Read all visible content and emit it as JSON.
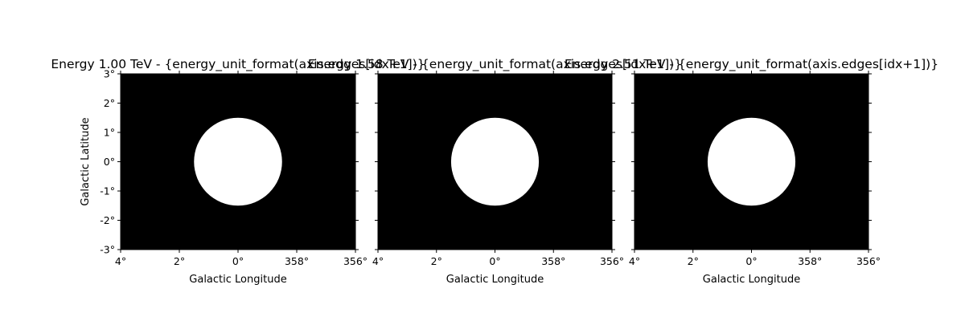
{
  "chart_data": [
    {
      "type": "heatmap",
      "title": "Energy 1.00 TeV - {energy_unit_format(axis.edges[idx+1])}",
      "xlabel": "Galactic Longitude",
      "ylabel": "Galactic Latitude",
      "x_ticks": [
        "4°",
        "2°",
        "0°",
        "358°",
        "356°"
      ],
      "y_ticks": [
        "3°",
        "2°",
        "1°",
        "0°",
        "-1°",
        "-2°",
        "-3°"
      ],
      "x_range_deg": [
        4,
        -4
      ],
      "y_range_deg": [
        -3,
        3
      ],
      "disk": {
        "center_lon_deg": 0,
        "center_lat_deg": 0,
        "radius_deg": 1.5,
        "value": 1
      },
      "background_value": 0,
      "colors": {
        "background": "#000000",
        "disk": "#ffffff"
      }
    },
    {
      "type": "heatmap",
      "title": "Energy 1.58 TeV - {energy_unit_format(axis.edges[idx+1])}",
      "xlabel": "Galactic Longitude",
      "x_ticks": [
        "4°",
        "2°",
        "0°",
        "358°",
        "356°"
      ],
      "x_range_deg": [
        4,
        -4
      ],
      "y_range_deg": [
        -3,
        3
      ],
      "disk": {
        "center_lon_deg": 0,
        "center_lat_deg": 0,
        "radius_deg": 1.5,
        "value": 1
      },
      "background_value": 0,
      "colors": {
        "background": "#000000",
        "disk": "#ffffff"
      }
    },
    {
      "type": "heatmap",
      "title": "Energy 2.51 TeV - {energy_unit_format(axis.edges[idx+1])}",
      "xlabel": "Galactic Longitude",
      "x_ticks": [
        "4°",
        "2°",
        "0°",
        "358°",
        "356°"
      ],
      "x_range_deg": [
        4,
        -4
      ],
      "y_range_deg": [
        -3,
        3
      ],
      "disk": {
        "center_lon_deg": 0,
        "center_lat_deg": 0,
        "radius_deg": 1.5,
        "value": 1
      },
      "background_value": 0,
      "colors": {
        "background": "#000000",
        "disk": "#ffffff"
      }
    }
  ]
}
